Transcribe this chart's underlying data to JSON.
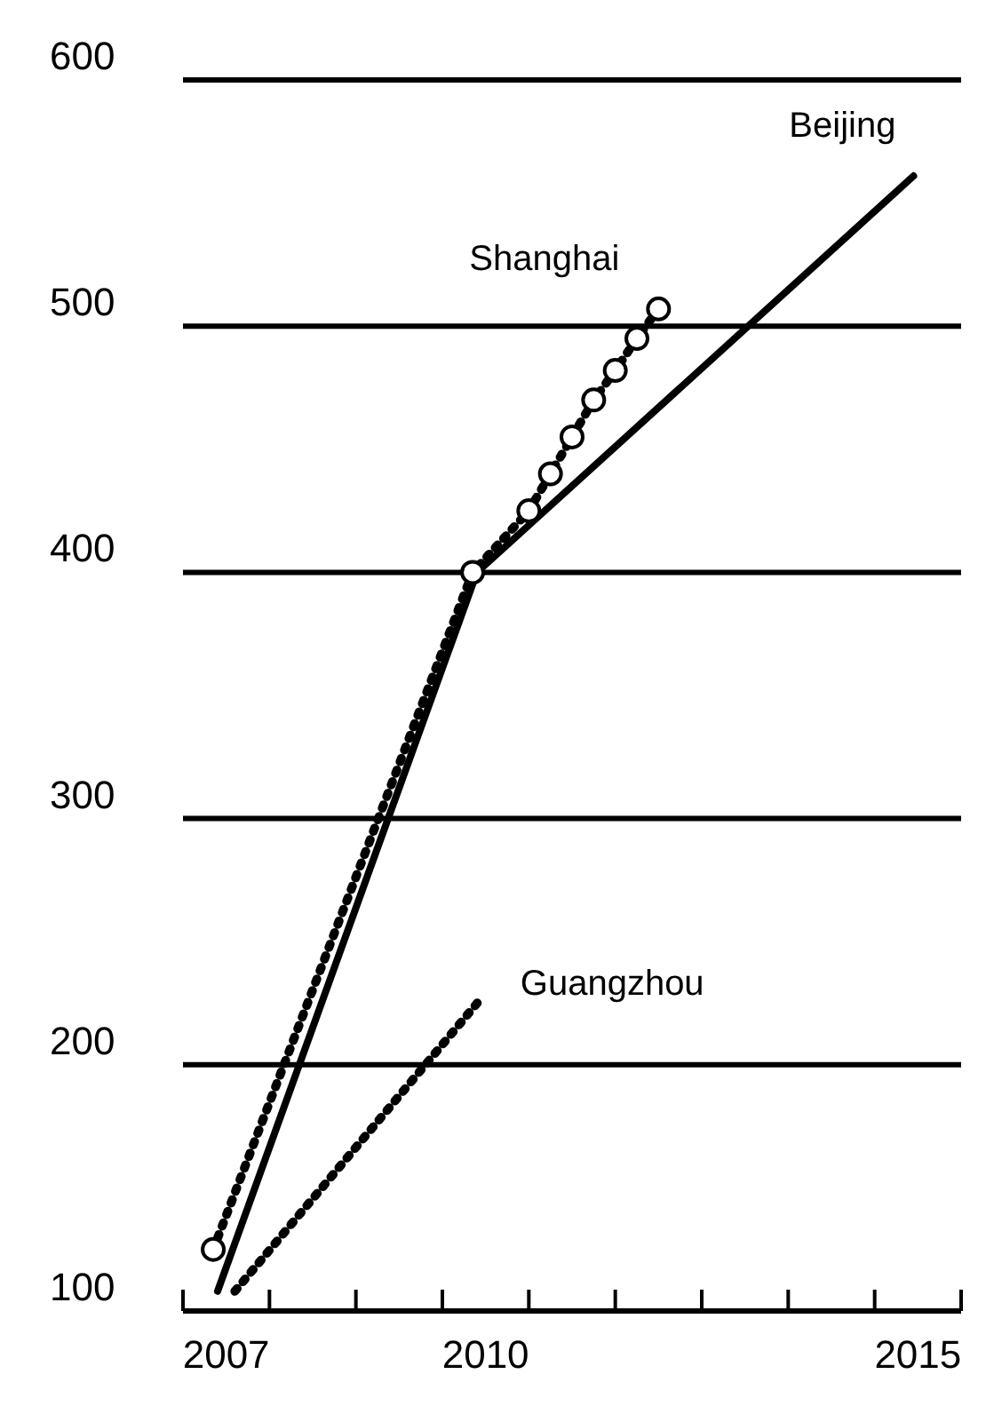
{
  "chart_data": {
    "type": "line",
    "xlim": [
      2007,
      2016
    ],
    "ylim": [
      100,
      600
    ],
    "xticks": [
      {
        "value": 2007,
        "label": null
      },
      {
        "value": 2008,
        "label": null
      },
      {
        "value": 2009,
        "label": null
      },
      {
        "value": 2010,
        "label": null
      },
      {
        "value": 2011,
        "label": null
      },
      {
        "value": 2012,
        "label": null
      },
      {
        "value": 2013,
        "label": null
      },
      {
        "value": 2014,
        "label": null
      },
      {
        "value": 2015,
        "label": null
      },
      {
        "value": 2016,
        "label": null
      },
      {
        "value": 2007.5,
        "label": "2007"
      },
      {
        "value": 2010.5,
        "label": "2010"
      },
      {
        "value": 2015.5,
        "label": "2015"
      }
    ],
    "yticks": [
      100,
      200,
      300,
      400,
      500,
      600
    ],
    "grid": "y",
    "series": [
      {
        "name": "Beijing",
        "color": "#000000",
        "x": [
          2007.4,
          2010.4,
          2015.45
        ],
        "values": [
          108,
          400,
          561
        ],
        "line_style": "solid",
        "marker": "none"
      },
      {
        "name": "Shanghai",
        "color": "#000000",
        "x": [
          2007.35,
          2010.35,
          2011.0,
          2011.25,
          2011.5,
          2011.75,
          2012.0,
          2012.25,
          2012.5
        ],
        "values": [
          125,
          400,
          425,
          440,
          455,
          470,
          482,
          495,
          507
        ],
        "line_style": "dotted",
        "marker": "circle"
      },
      {
        "name": "Guangzhou",
        "color": "#000000",
        "x": [
          2007.6,
          2010.45
        ],
        "values": [
          108,
          227
        ],
        "line_style": "dotted",
        "marker": "none"
      }
    ]
  }
}
